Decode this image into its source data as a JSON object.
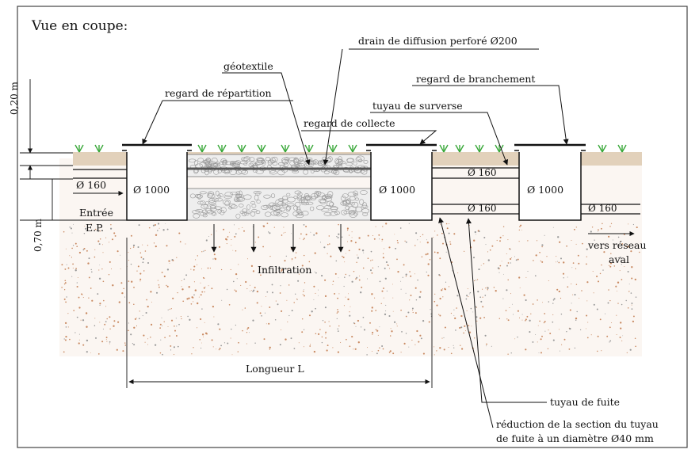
{
  "title": "Vue en coupe:",
  "labels": {
    "drain": "drain de diffusion perforé Ø200",
    "geotextile": "géotextile",
    "regard_repartition": "regard de répartition",
    "regard_branchement": "regard de branchement",
    "tuyau_surverse": "tuyau de surverse",
    "regard_collecte": "regard de collecte",
    "tuyau_fuite": "tuyau de fuite",
    "reduction_line1": "réduction de la section du tuyau",
    "reduction_line2": "de fuite à un diamètre Ø40 mm",
    "infiltration": "Infiltration",
    "longueur": "Longueur L",
    "entree_line1": "Entrée",
    "entree_line2": "E.P.",
    "vers_line1": "vers réseau",
    "vers_line2": "aval"
  },
  "dimensions": {
    "top": "0,20 m",
    "depth": "0,70 m"
  },
  "diameters": {
    "inlet": "Ø 160",
    "manhole_1": "Ø 1000",
    "manhole_2": "Ø 1000",
    "manhole_3": "Ø 1000",
    "pipe_upper": "Ø 160",
    "pipe_lower": "Ø 160",
    "pipe_out": "Ø 160"
  },
  "colors": {
    "line": "#111111",
    "soil_dots": "#c98a62",
    "topsoil": "#d9c4a8",
    "grass": "#3aa83a",
    "gravel": "#9a9a9a"
  }
}
